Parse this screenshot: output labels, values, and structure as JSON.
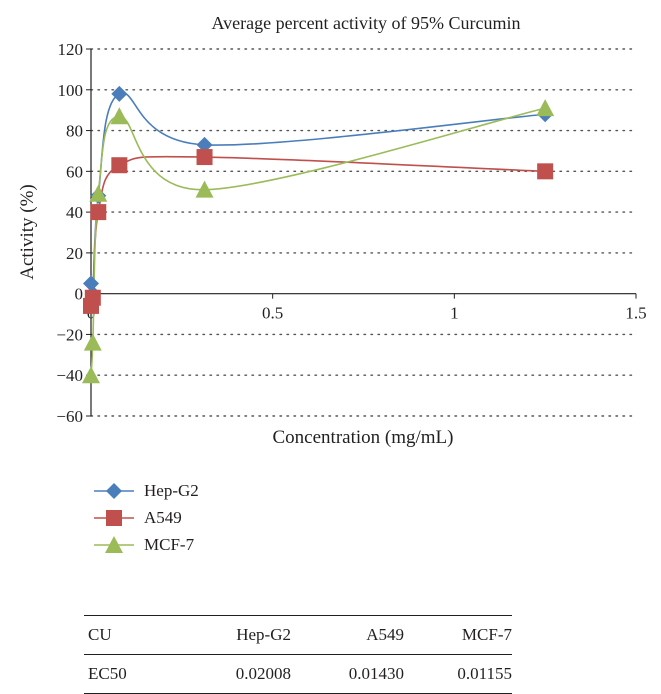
{
  "chart_data": {
    "type": "scatter",
    "title": "Average percent activity of 95% Curcumin",
    "xlabel": "Concentration (mg/mL)",
    "ylabel": "Activity (%)",
    "xlim": [
      0,
      1.5
    ],
    "ylim": [
      -60,
      120
    ],
    "xticks": [
      "0",
      "0.5",
      "1",
      "1.5"
    ],
    "yticks": [
      "120",
      "100",
      "80",
      "60",
      "40",
      "20",
      "0",
      "−20",
      "−40",
      "−60"
    ],
    "xtick_values": [
      0,
      0.5,
      1,
      1.5
    ],
    "ytick_values": [
      120,
      100,
      80,
      60,
      40,
      20,
      0,
      -20,
      -40,
      -60
    ],
    "grid": "horizontal dotted",
    "legend_position": "below",
    "series": [
      {
        "name": "Hep-G2",
        "marker": "diamond",
        "color": "#4a7ebb",
        "x": [
          0.0,
          0.005,
          0.02,
          0.078,
          0.3125,
          1.25
        ],
        "y": [
          5,
          0,
          48,
          98,
          73,
          88
        ]
      },
      {
        "name": "A549",
        "marker": "square",
        "color": "#c0504d",
        "x": [
          0.0,
          0.005,
          0.02,
          0.078,
          0.3125,
          1.25
        ],
        "y": [
          -6,
          -2,
          40,
          63,
          67,
          60
        ]
      },
      {
        "name": "MCF-7",
        "marker": "triangle",
        "color": "#9bbb59",
        "x": [
          0.0,
          0.005,
          0.02,
          0.078,
          0.3125,
          1.25
        ],
        "y": [
          -40,
          -24,
          49,
          87,
          51,
          91
        ]
      }
    ]
  },
  "table": {
    "headers": [
      "CU",
      "Hep-G2",
      "A549",
      "MCF-7"
    ],
    "rows": [
      [
        "EC50",
        "0.02008",
        "0.01430",
        "0.01155"
      ]
    ]
  }
}
